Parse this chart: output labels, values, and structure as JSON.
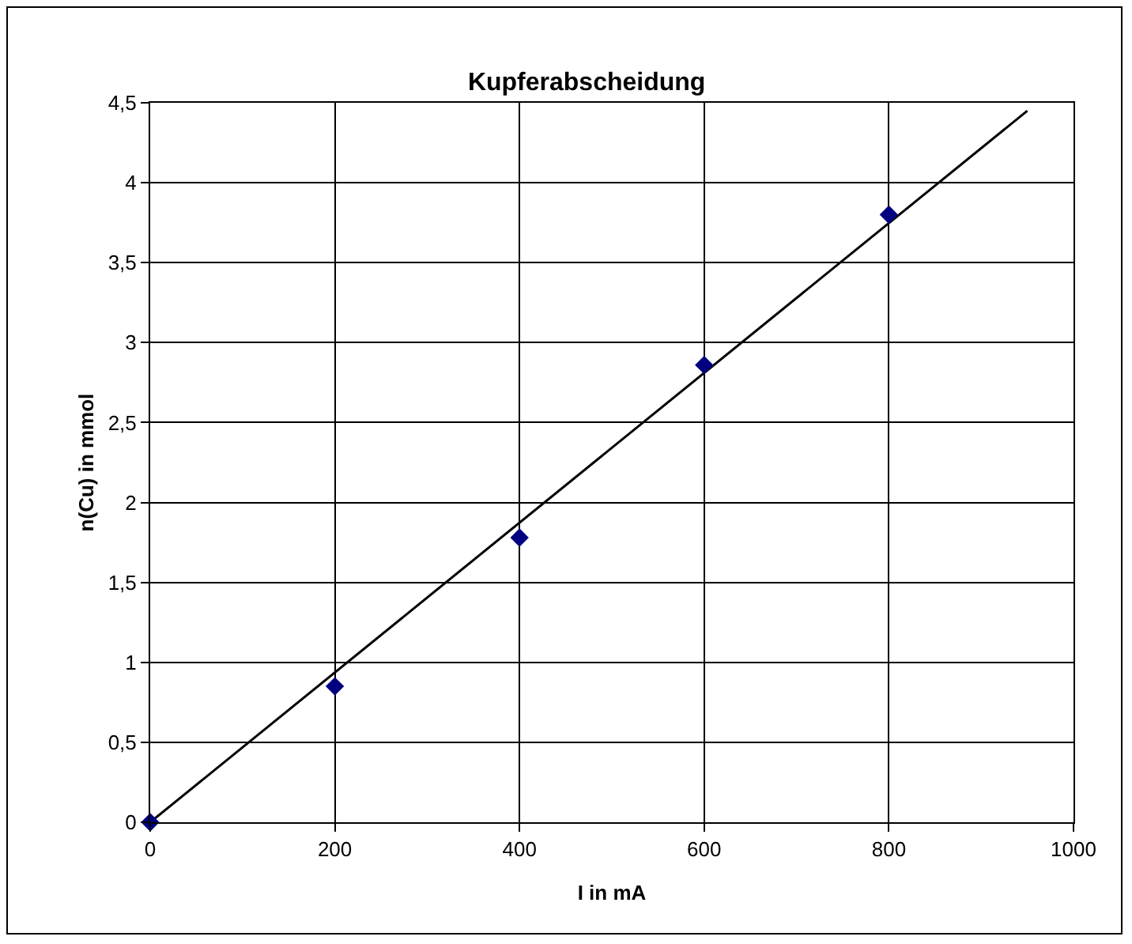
{
  "chart_data": {
    "type": "scatter",
    "title": "Kupferabscheidung",
    "xlabel": "I in mA",
    "ylabel": "n(Cu) in mmol",
    "x": [
      0,
      200,
      400,
      600,
      800
    ],
    "series": [
      {
        "color": "#000080",
        "marker": "diamond",
        "values": [
          0,
          0.85,
          1.78,
          2.86,
          3.8
        ]
      },
      {
        "type": "line",
        "color": "#000000",
        "x": [
          0,
          950
        ],
        "values": [
          0,
          4.45
        ],
        "line_style": "solid",
        "marker": "none"
      }
    ],
    "xlim": [
      0,
      1000
    ],
    "xticks": [
      0,
      200,
      400,
      600,
      800,
      1000
    ],
    "ylim": [
      0,
      4.5
    ],
    "yticks": [
      0,
      {
        "value": 0.5,
        "label": "0,5"
      },
      1,
      {
        "value": 1.5,
        "label": "1,5"
      },
      2,
      {
        "value": 2.5,
        "label": "2,5"
      },
      3,
      {
        "value": 3.5,
        "label": "3,5"
      },
      4,
      {
        "value": 4.5,
        "label": "4,5"
      }
    ],
    "grid": true
  }
}
